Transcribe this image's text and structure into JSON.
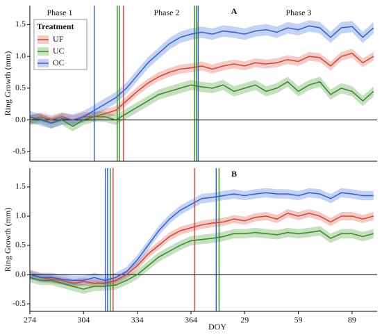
{
  "chart_data": [
    {
      "type": "line",
      "label": "A",
      "ylabel": "Ring Growth (mm)",
      "annotations": [
        "Phase 1",
        "Phase 2",
        "Phase 3"
      ],
      "legend": {
        "title": "Treatment",
        "corner": "upper left"
      },
      "x": [
        274,
        280,
        286,
        292,
        298,
        304,
        310,
        316,
        322,
        328,
        334,
        340,
        346,
        352,
        358,
        364,
        370,
        376,
        382,
        388,
        394,
        400,
        406,
        412,
        418,
        424,
        430,
        436,
        442,
        448,
        454,
        460,
        466
      ],
      "xlim": [
        274,
        468
      ],
      "ylim": [
        -0.65,
        1.8
      ],
      "yticks": [
        -0.5,
        {
          "value": 0,
          "label": "0.0"
        },
        0.5,
        {
          "value": 1,
          "label": "1.0"
        },
        1.5
      ],
      "hline": 0,
      "vlines": [
        {
          "x": 310,
          "color": "#2b5fd8"
        },
        {
          "x": 322.8,
          "color": "#2e8b1e"
        },
        {
          "x": 324,
          "color": "#2e8b1e"
        },
        {
          "x": 326.3,
          "color": "#d9412e"
        },
        {
          "x": 366,
          "color": "#2e8b1e"
        },
        {
          "x": 367,
          "color": "#2e8b1e"
        },
        {
          "x": 368,
          "color": "#2b5fd8"
        }
      ],
      "series": [
        {
          "name": "UF",
          "color": "#d9412e",
          "band": 0.07,
          "values": [
            0.0,
            0.05,
            0.0,
            0.05,
            0.0,
            0.05,
            0.05,
            0.1,
            0.15,
            0.3,
            0.45,
            0.58,
            0.68,
            0.75,
            0.8,
            0.82,
            0.85,
            0.8,
            0.85,
            0.88,
            0.85,
            0.9,
            0.88,
            0.9,
            0.95,
            0.92,
            1.0,
            0.98,
            0.85,
            1.0,
            1.05,
            0.9,
            1.0
          ]
        },
        {
          "name": "UC",
          "color": "#2e8b1e",
          "band": 0.08,
          "values": [
            0.0,
            0.02,
            -0.05,
            0.0,
            -0.1,
            0.0,
            0.05,
            0.05,
            0.0,
            0.1,
            0.2,
            0.3,
            0.4,
            0.45,
            0.5,
            0.55,
            0.52,
            0.5,
            0.55,
            0.45,
            0.5,
            0.55,
            0.45,
            0.5,
            0.6,
            0.45,
            0.55,
            0.6,
            0.4,
            0.5,
            0.45,
            0.3,
            0.45
          ]
        },
        {
          "name": "OC",
          "color": "#2b5fd8",
          "band": 0.09,
          "values": [
            0.05,
            0.0,
            -0.05,
            0.02,
            0.0,
            0.05,
            0.15,
            0.25,
            0.35,
            0.5,
            0.7,
            0.9,
            1.05,
            1.2,
            1.3,
            1.35,
            1.38,
            1.35,
            1.4,
            1.38,
            1.35,
            1.4,
            1.42,
            1.38,
            1.45,
            1.42,
            1.48,
            1.45,
            1.3,
            1.45,
            1.47,
            1.3,
            1.45
          ]
        }
      ]
    },
    {
      "type": "line",
      "label": "B",
      "ylabel": "Ring Growth (mm)",
      "xlabel": "DOY",
      "x": [
        274,
        280,
        286,
        292,
        298,
        304,
        310,
        316,
        322,
        328,
        334,
        340,
        346,
        352,
        358,
        364,
        370,
        376,
        382,
        388,
        394,
        400,
        406,
        412,
        418,
        424,
        430,
        436,
        442,
        448,
        454,
        460,
        466
      ],
      "xlim": [
        274,
        468
      ],
      "ylim": [
        -0.63,
        1.82
      ],
      "xticks": [
        274,
        304,
        334,
        364,
        {
          "value": 394,
          "label": "29"
        },
        {
          "value": 424,
          "label": "59"
        },
        {
          "value": 454,
          "label": "89"
        }
      ],
      "yticks": [
        -0.5,
        {
          "value": 0,
          "label": "0.0"
        },
        0.5,
        {
          "value": 1,
          "label": "1.0"
        },
        1.5
      ],
      "hline": 0,
      "vlines": [
        {
          "x": 316.2,
          "color": "#2b5fd8"
        },
        {
          "x": 317.4,
          "color": "#2b5fd8"
        },
        {
          "x": 318.9,
          "color": "#2e8b1e"
        },
        {
          "x": 320.5,
          "color": "#d9412e"
        },
        {
          "x": 366.1,
          "color": "#d9412e"
        },
        {
          "x": 378.1,
          "color": "#2b5fd8"
        },
        {
          "x": 379.7,
          "color": "#2e8b1e"
        }
      ],
      "series": [
        {
          "name": "UF",
          "color": "#d9412e",
          "band": 0.07,
          "values": [
            0.0,
            -0.05,
            -0.08,
            -0.1,
            -0.15,
            -0.12,
            -0.15,
            -0.15,
            -0.1,
            0.0,
            0.15,
            0.35,
            0.5,
            0.65,
            0.75,
            0.8,
            0.85,
            0.88,
            0.9,
            0.95,
            0.92,
            0.98,
            1.0,
            0.95,
            1.05,
            1.0,
            1.05,
            1.0,
            0.9,
            1.0,
            1.0,
            0.95,
            1.0
          ]
        },
        {
          "name": "UC",
          "color": "#2e8b1e",
          "band": 0.08,
          "values": [
            -0.05,
            -0.1,
            -0.1,
            -0.15,
            -0.2,
            -0.25,
            -0.2,
            -0.2,
            -0.18,
            -0.1,
            0.0,
            0.15,
            0.3,
            0.4,
            0.5,
            0.58,
            0.6,
            0.62,
            0.65,
            0.7,
            0.7,
            0.72,
            0.7,
            0.68,
            0.72,
            0.7,
            0.72,
            0.75,
            0.62,
            0.7,
            0.7,
            0.65,
            0.7
          ]
        },
        {
          "name": "OC",
          "color": "#2b5fd8",
          "band": 0.08,
          "values": [
            0.0,
            -0.05,
            -0.05,
            -0.08,
            -0.1,
            -0.1,
            -0.05,
            -0.1,
            -0.05,
            0.05,
            0.25,
            0.5,
            0.75,
            0.95,
            1.1,
            1.2,
            1.3,
            1.32,
            1.35,
            1.38,
            1.35,
            1.38,
            1.4,
            1.38,
            1.38,
            1.35,
            1.4,
            1.38,
            1.3,
            1.4,
            1.38,
            1.35,
            1.35
          ]
        }
      ]
    }
  ]
}
